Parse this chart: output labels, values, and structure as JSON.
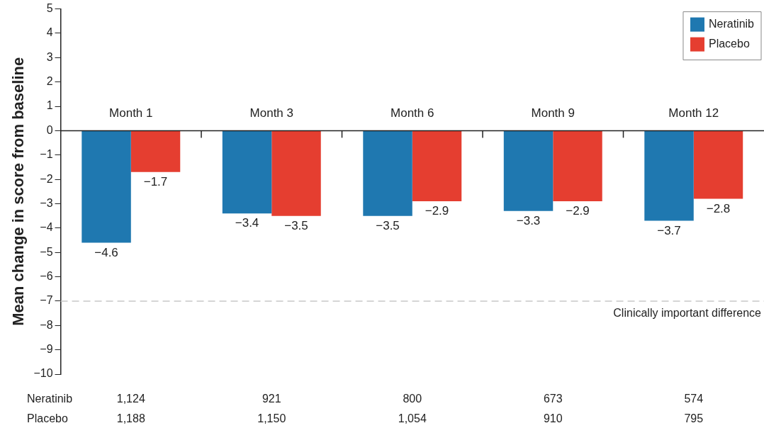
{
  "chart_data": {
    "type": "bar",
    "ylabel": "Mean change in score from baseline",
    "categories": [
      "Month 1",
      "Month 3",
      "Month 6",
      "Month 9",
      "Month 12"
    ],
    "series": [
      {
        "name": "Neratinib",
        "color": "#1f78b0",
        "values": [
          -4.6,
          -3.4,
          -3.5,
          -3.3,
          -3.7
        ],
        "value_labels": [
          "−4.6",
          "−3.4",
          "−3.5",
          "−3.3",
          "−3.7"
        ]
      },
      {
        "name": "Placebo",
        "color": "#e53e30",
        "values": [
          -1.7,
          -3.5,
          -2.9,
          -2.9,
          -2.8
        ],
        "value_labels": [
          "−1.7",
          "−3.5",
          "−2.9",
          "−2.9",
          "−2.8"
        ]
      }
    ],
    "ylim": [
      -10,
      5
    ],
    "yticks": [
      {
        "value": -10,
        "label": "−10"
      },
      {
        "value": -9,
        "label": "−9"
      },
      {
        "value": -8,
        "label": "−8"
      },
      {
        "value": -7,
        "label": "−7"
      },
      {
        "value": -6,
        "label": "−6"
      },
      {
        "value": -5,
        "label": "−5"
      },
      {
        "value": -4,
        "label": "−4"
      },
      {
        "value": -3,
        "label": "−3"
      },
      {
        "value": -2,
        "label": "−2"
      },
      {
        "value": -1,
        "label": "−1"
      },
      0,
      1,
      2,
      3,
      4,
      5
    ],
    "ref_lines": [
      {
        "axis": "y",
        "value": -7,
        "label": "Clinically important difference",
        "color": "#c8c8c8",
        "line_style": "dashed"
      }
    ],
    "legend": "top right",
    "grid": false,
    "annotations": [
      "Neratinib",
      "1,124",
      "921",
      "800",
      "673",
      "574",
      "Placebo",
      "1,188",
      "1,150",
      "1,054",
      "910",
      "795"
    ]
  }
}
